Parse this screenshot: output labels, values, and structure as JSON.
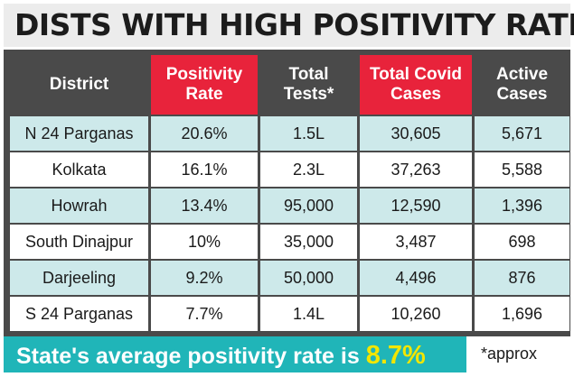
{
  "title": "DISTS WITH HIGH POSITIVITY RATE",
  "footer": {
    "text": "State's average positivity rate is",
    "value": "8.7%"
  },
  "note": "*approx",
  "colors": {
    "header_dark": "#4a4a4a",
    "header_red": "#e8233b",
    "row_shade": "#cde9ea",
    "footer_bg": "#20b5b8",
    "footer_value": "#f2e600"
  },
  "chart_data": {
    "type": "table",
    "title": "DISTS WITH HIGH POSITIVITY RATE",
    "columns": [
      {
        "line1": "District",
        "line2": ""
      },
      {
        "line1": "Positivity",
        "line2": "Rate"
      },
      {
        "line1": "Total",
        "line2": "Tests*"
      },
      {
        "line1": "Total Covid",
        "line2": "Cases"
      },
      {
        "line1": "Active",
        "line2": "Cases"
      }
    ],
    "rows": [
      [
        "N 24 Parganas",
        "20.6%",
        "1.5L",
        "30,605",
        "5,671"
      ],
      [
        "Kolkata",
        "16.1%",
        "2.3L",
        "37,263",
        "5,588"
      ],
      [
        "Howrah",
        "13.4%",
        "95,000",
        "12,590",
        "1,396"
      ],
      [
        "South Dinajpur",
        "10%",
        "35,000",
        "3,487",
        "698"
      ],
      [
        "Darjeeling",
        "9.2%",
        "50,000",
        "4,496",
        "876"
      ],
      [
        "S 24 Parganas",
        "7.7%",
        "1.4L",
        "10,260",
        "1,696"
      ]
    ]
  }
}
